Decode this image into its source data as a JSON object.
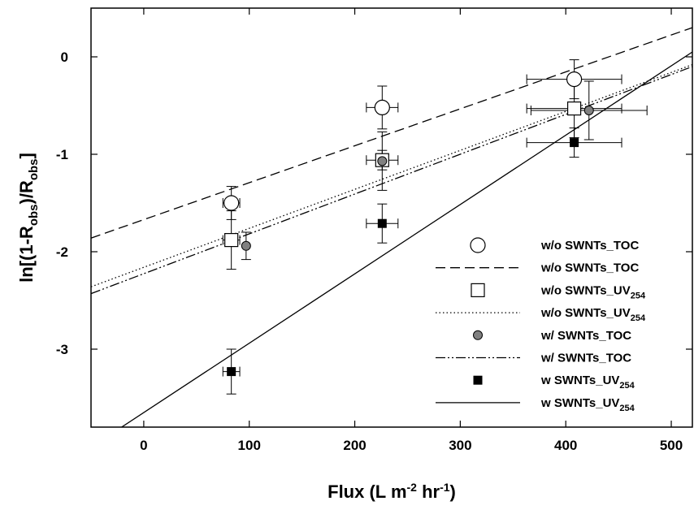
{
  "chart_data": {
    "type": "scatter",
    "xlabel": "Flux (L m-2 hr-1)",
    "ylabel": "ln[(1-Robs)/Robs]",
    "xlim": [
      -50,
      520
    ],
    "ylim": [
      -3.8,
      0.5
    ],
    "xticks": [
      0,
      100,
      200,
      300,
      400,
      500
    ],
    "yticks": [
      0,
      -1,
      -2,
      -3
    ],
    "grid": false,
    "legend_position": "bottom-right",
    "series": [
      {
        "name": "w/o SWNTs_TOC",
        "marker": "circle-open",
        "points": [
          {
            "x": 83,
            "y": -1.5,
            "yerr": 0.17,
            "xerr": 8
          },
          {
            "x": 226,
            "y": -0.52,
            "yerr": 0.22,
            "xerr": 15
          },
          {
            "x": 408,
            "y": -0.23,
            "yerr": 0.2,
            "xerr": 45
          }
        ],
        "fit": {
          "style": "dashed",
          "x": [
            -50,
            520
          ],
          "y": [
            -1.86,
            0.3
          ]
        }
      },
      {
        "name": "w/o SWNTs_UV254",
        "marker": "square-open",
        "points": [
          {
            "x": 83,
            "y": -1.88,
            "yerr": 0.3,
            "xerr": 8
          },
          {
            "x": 226,
            "y": -1.06,
            "yerr": 0.1,
            "xerr": 15
          },
          {
            "x": 408,
            "y": -0.53,
            "yerr": 0.3,
            "xerr": 45
          }
        ],
        "fit": {
          "style": "dotted",
          "x": [
            -50,
            520
          ],
          "y": [
            -2.36,
            -0.08
          ]
        }
      },
      {
        "name": "w/ SWNTs_TOC",
        "marker": "circle-gray",
        "points": [
          {
            "x": 97,
            "y": -1.94,
            "yerr": 0.14,
            "xerr": 0
          },
          {
            "x": 226,
            "y": -1.07,
            "yerr": 0.3,
            "xerr": 0
          },
          {
            "x": 422,
            "y": -0.55,
            "yerr": 0.3,
            "xerr": 55
          }
        ],
        "fit": {
          "style": "dash-dot-dot",
          "x": [
            -50,
            520
          ],
          "y": [
            -2.43,
            -0.1
          ]
        }
      },
      {
        "name": "w SWNTs_UV254",
        "marker": "square-black",
        "points": [
          {
            "x": 83,
            "y": -3.23,
            "yerr": 0.23,
            "xerr": 8
          },
          {
            "x": 226,
            "y": -1.71,
            "yerr": 0.2,
            "xerr": 15
          },
          {
            "x": 408,
            "y": -0.88,
            "yerr": 0.15,
            "xerr": 45
          }
        ],
        "fit": {
          "style": "solid",
          "x": [
            -21,
            520
          ],
          "y": [
            -3.8,
            0.05
          ]
        }
      }
    ],
    "legend": [
      {
        "sym": "circle-open",
        "label": "w/o SWNTs_TOC"
      },
      {
        "sym": "dashed",
        "label": "w/o SWNTs_TOC"
      },
      {
        "sym": "square-open",
        "label": "w/o SWNTs_UV",
        "sub": "254"
      },
      {
        "sym": "dotted",
        "label": "w/o SWNTs_UV",
        "sub": "254"
      },
      {
        "sym": "circle-gray",
        "label": "w/ SWNTs_TOC"
      },
      {
        "sym": "dash-dot-dot",
        "label": "w/ SWNTs_TOC"
      },
      {
        "sym": "square-black",
        "label": "w SWNTs_UV",
        "sub": "254"
      },
      {
        "sym": "solid",
        "label": "w SWNTs_UV",
        "sub": "254"
      }
    ]
  }
}
